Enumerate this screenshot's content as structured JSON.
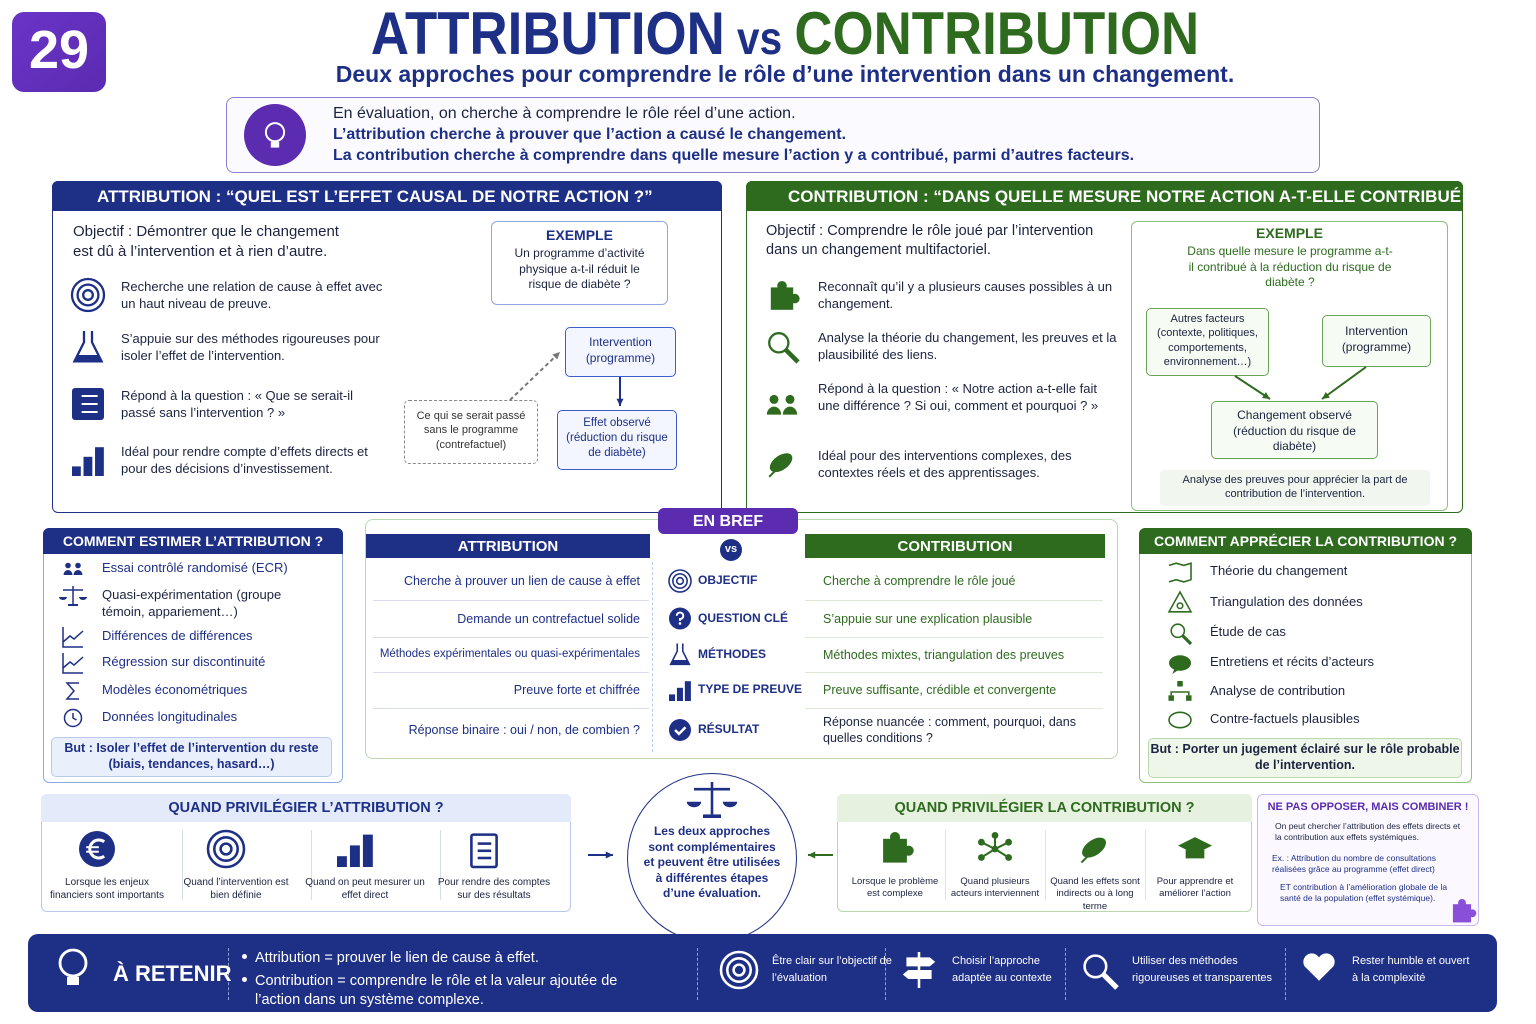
{
  "badge": "29",
  "header": {
    "title_part1": "ATTRIBUTION",
    "title_vs": "vs",
    "title_part2": "CONTRIBUTION",
    "subtitle": "Deux approches pour comprendre le rôle d’une intervention dans un changement."
  },
  "intro": {
    "lines": [
      "En évaluation, on cherche à comprendre le rôle réel d’une action.",
      "L’attribution cherche à prouver que l’action a causé le changement.",
      "La contribution cherche à comprendre dans quelle mesure l’action y a contribué, parmi d’autres facteurs."
    ]
  },
  "attribution_panel": {
    "title": "ATTRIBUTION : “QUEL EST L’EFFET CAUSAL DE NOTRE ACTION ?”",
    "objective": "Objectif : Démontrer que le changement est dû à l’intervention et à rien d’autre.",
    "points": [
      "Recherche une relation de cause à effet avec un haut niveau de preuve.",
      "S’appuie sur des méthodes rigoureuses pour isoler l’effet de l’intervention.",
      "Répond à la question : « Que se serait-il passé sans l’intervention ? »",
      "Idéal pour rendre compte d’effets directs et pour des décisions d’investissement."
    ],
    "example": {
      "title": "EXEMPLE",
      "text": "Un programme d’activité physique a-t-il réduit le risque de diabète ?"
    },
    "diagram": {
      "intervention": "Intervention (programme)",
      "counterfactual": "Ce qui se serait passé sans le programme (contrefactuel)",
      "effect": "Effet observé (réduction du risque de diabète)"
    }
  },
  "contribution_panel": {
    "title": "CONTRIBUTION : “DANS QUELLE MESURE NOTRE ACTION A-T-ELLE CONTRIBUÉ ?”",
    "objective": "Objectif : Comprendre le rôle joué par l’intervention dans un changement multifactoriel.",
    "points": [
      "Reconnaît qu’il y a plusieurs causes possibles à un changement.",
      "Analyse la théorie du changement, les preuves et la plausibilité des liens.",
      "Répond à la question : « Notre action a-t-elle fait une différence ? Si oui, comment et pourquoi ? »",
      "Idéal pour des interventions complexes, des contextes réels et des apprentissages."
    ],
    "example": {
      "title": "EXEMPLE",
      "text": "Dans quelle mesure le programme a-t-il contribué à la réduction du risque de diabète ?"
    },
    "diagram": {
      "other_factors": "Autres facteurs (contexte, politiques, comportements, environnement…)",
      "intervention": "Intervention (programme)",
      "change": "Changement observé (réduction du risque de diabète)",
      "note": "Analyse des preuves pour apprécier la part de contribution de l’intervention."
    }
  },
  "comment_attribution": {
    "title": "COMMENT ESTIMER L’ATTRIBUTION ?",
    "items": [
      "Essai contrôlé randomisé (ECR)",
      "Quasi-expérimentation (groupe témoin, appariement…)",
      "Différences de différences",
      "Régression sur discontinuité",
      "Modèles économétriques",
      "Données longitudinales"
    ],
    "goal": "But : Isoler l’effet de l’intervention du reste (biais, tendances, hasard…)"
  },
  "en_bref": {
    "title": "EN BREF",
    "vs": "vs",
    "attribution_header": "ATTRIBUTION",
    "contribution_header": "CONTRIBUTION",
    "rows": [
      {
        "attribution": "Cherche à prouver un lien de cause à effet",
        "criterion": "OBJECTIF",
        "contribution": "Cherche à comprendre le rôle joué"
      },
      {
        "attribution": "Demande un contrefactuel solide",
        "criterion": "QUESTION CLÉ",
        "contribution": "S’appuie sur une explication plausible"
      },
      {
        "attribution": "Méthodes expérimentales ou quasi-expérimentales",
        "criterion": "MÉTHODES",
        "contribution": "Méthodes mixtes, triangulation des preuves"
      },
      {
        "attribution": "Preuve forte et chiffrée",
        "criterion": "TYPE DE PREUVE",
        "contribution": "Preuve suffisante, crédible et convergente"
      },
      {
        "attribution": "Réponse binaire : oui / non, de combien ?",
        "criterion": "RÉSULTAT",
        "contribution": "Réponse nuancée : comment, pourquoi, dans quelles conditions ?"
      }
    ]
  },
  "comment_contribution": {
    "title": "COMMENT APPRÉCIER LA CONTRIBUTION ?",
    "items": [
      "Théorie du changement",
      "Triangulation des données",
      "Étude de cas",
      "Entretiens et récits d’acteurs",
      "Analyse de contribution",
      "Contre-factuels plausibles"
    ],
    "goal": "But : Porter un jugement éclairé sur le rôle probable de l’intervention."
  },
  "quand_attribution": {
    "title": "QUAND PRIVILÉGIER L’ATTRIBUTION ?",
    "items": [
      "Lorsque les enjeux financiers sont importants",
      "Quand l’intervention est bien définie",
      "Quand on peut mesurer un effet direct",
      "Pour rendre des comptes sur des résultats"
    ]
  },
  "center_note": "Les deux approches sont complémentaires et peuvent être utilisées à différentes étapes d’une évaluation.",
  "quand_contribution": {
    "title": "QUAND PRIVILÉGIER LA CONTRIBUTION ?",
    "items": [
      "Lorsque le problème est complexe",
      "Quand plusieurs acteurs interviennent",
      "Quand les effets sont indirects ou à long terme",
      "Pour apprendre et améliorer l’action"
    ]
  },
  "combine": {
    "title": "NE PAS OPPOSER, MAIS COMBINER !",
    "lines": [
      "On peut chercher l’attribution des effets directs et la contribution aux effets systémiques.",
      "Ex. : Attribution du nombre de consultations réalisées grâce au programme (effet direct)",
      "ET contribution à l’amélioration globale de la santé de la population (effet systémique)."
    ]
  },
  "retenir": {
    "title": "À RETENIR",
    "points": [
      "Attribution = prouver le lien de cause à effet.",
      "Contribution = comprendre le rôle et la valeur ajoutée de l’action dans un système complexe."
    ],
    "tips": [
      "Être clair sur l’objectif de l’évaluation",
      "Choisir l’approche adaptée au contexte",
      "Utiliser des méthodes rigoureuses et transparentes",
      "Rester humble et ouvert à la complexité"
    ]
  }
}
